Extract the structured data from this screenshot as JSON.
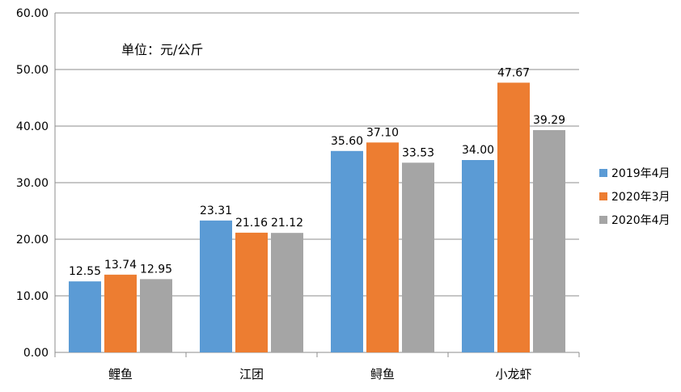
{
  "chart_data": {
    "type": "bar",
    "title": "",
    "annotation": "单位：元/公斤",
    "xlabel": "",
    "ylabel": "",
    "categories": [
      "鲤鱼",
      "江团",
      "鲟鱼",
      "小龙虾"
    ],
    "series": [
      {
        "name": "2019年4月",
        "color": "#5B9BD5",
        "values": [
          12.55,
          23.31,
          35.6,
          34.0
        ]
      },
      {
        "name": "2020年3月",
        "color": "#ED7D31",
        "values": [
          13.74,
          21.16,
          37.1,
          47.67
        ]
      },
      {
        "name": "2020年4月",
        "color": "#A5A5A5",
        "values": [
          12.95,
          21.12,
          33.53,
          39.29
        ]
      }
    ],
    "ylim": [
      0,
      60
    ],
    "yticks": [
      0,
      10,
      20,
      30,
      40,
      50,
      60
    ],
    "ytick_labels": [
      "0.00",
      "10.00",
      "20.00",
      "30.00",
      "40.00",
      "50.00",
      "60.00"
    ],
    "data_label_format": "2 decimals",
    "grid": true,
    "legend_position": "right"
  }
}
